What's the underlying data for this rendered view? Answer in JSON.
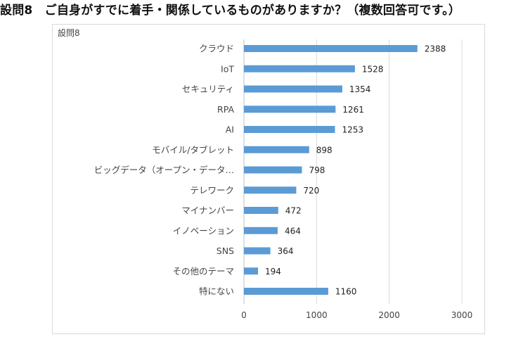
{
  "heading": "設問8　ご自身がすでに着手・関係しているものがありますか？（複数回答可です。）",
  "colors": {
    "bar": "#5b9bd5",
    "grid": "#d9d9d9",
    "axis": "#bfbfbf"
  },
  "chart_data": {
    "type": "bar",
    "orientation": "horizontal",
    "title": "設問8",
    "categories": [
      "クラウド",
      "IoT",
      "セキュリティ",
      "RPA",
      "AI",
      "モバイル/タブレット",
      "ビッグデータ（オープン・データ…",
      "テレワーク",
      "マイナンバー",
      "イノベーション",
      "SNS",
      "その他のテーマ",
      "特にない"
    ],
    "values": [
      2388,
      1528,
      1354,
      1261,
      1253,
      898,
      798,
      720,
      472,
      464,
      364,
      194,
      1160
    ],
    "data_labels": [
      "2388",
      "1528",
      "1354",
      "1261",
      "1253",
      "898",
      "798",
      "720",
      "472",
      "464",
      "364",
      "194",
      "1160"
    ],
    "xlim": [
      0,
      3000
    ],
    "ticks": [
      0,
      1000,
      2000,
      3000
    ],
    "tick_labels": [
      "0",
      "1000",
      "2000",
      "3000"
    ],
    "grid": true,
    "legend": "none"
  }
}
